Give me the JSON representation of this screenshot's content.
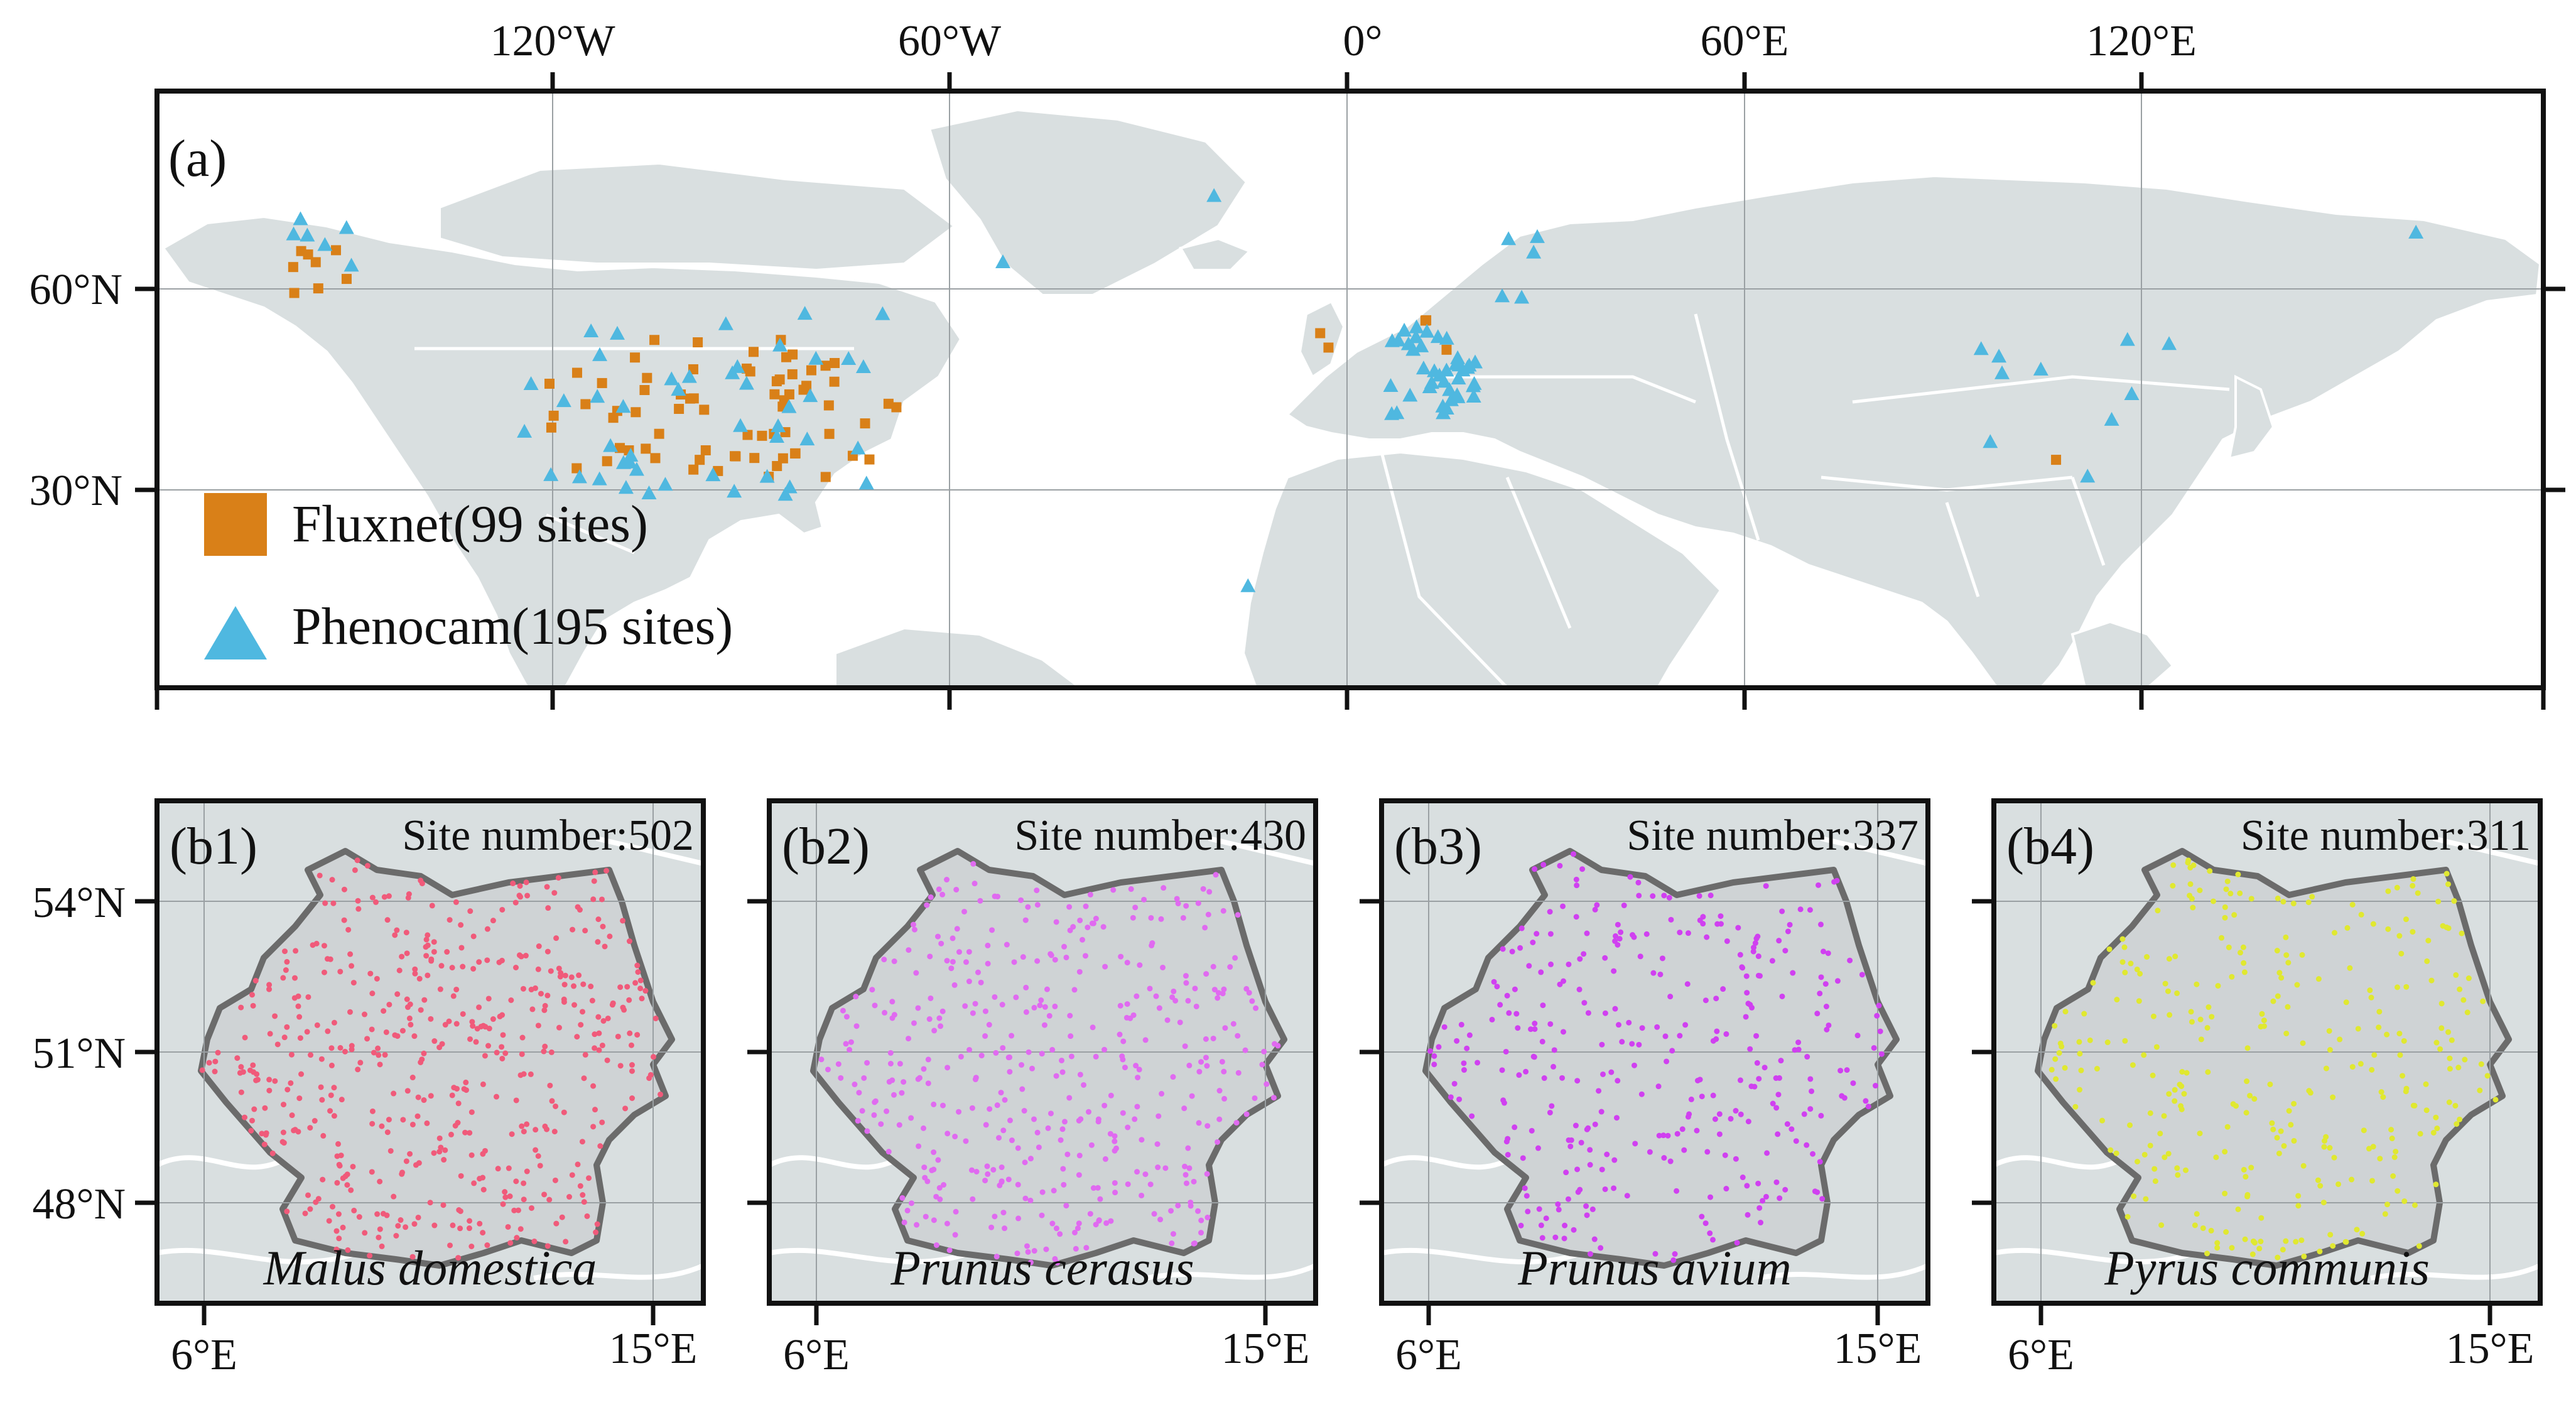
{
  "colors": {
    "land": "#d9dfe0",
    "germany": "#cfd3d5",
    "border": "#ffffff",
    "germany_outline": "#6b6b6b",
    "grid": "#9aa0a3",
    "frame": "#111111",
    "fluxnet": "#d98018",
    "phenocam": "#4fb8e0",
    "malus": "#f05a7a",
    "prunus_cerasus": "#e06af0",
    "prunus_avium": "#d040f0",
    "pyrus": "#e0e830"
  },
  "panel_a": {
    "label": "(a)",
    "lon_ticks": [
      "120°W",
      "60°W",
      "0°",
      "60°E",
      "120°E"
    ],
    "lat_ticks": [
      "60°N",
      "30°N"
    ],
    "legend": [
      {
        "label": "Fluxnet(99 sites)",
        "marker": "square"
      },
      {
        "label": "Phenocam(195 sites)",
        "marker": "triangle"
      }
    ]
  },
  "panels_b": [
    {
      "label": "(b1)",
      "site_label": "Site number:502",
      "sites": 502,
      "species": "Malus domestica"
    },
    {
      "label": "(b2)",
      "site_label": "Site number:430",
      "sites": 430,
      "species": "Prunus cerasus"
    },
    {
      "label": "(b3)",
      "site_label": "Site number:337",
      "sites": 337,
      "species": "Prunus avium"
    },
    {
      "label": "(b4)",
      "site_label": "Site number:311",
      "sites": 311,
      "species": "Pyrus communis"
    }
  ],
  "panel_b_axes": {
    "lat_ticks": [
      "54°N",
      "51°N",
      "48°N"
    ],
    "lon_ticks": [
      "6°E",
      "15°E"
    ]
  }
}
